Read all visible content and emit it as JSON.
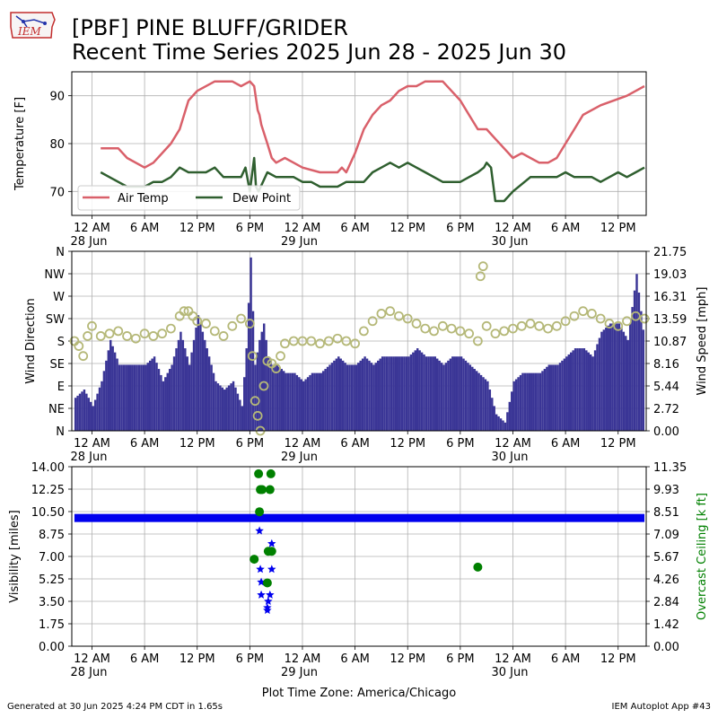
{
  "header": {
    "title_line1": "[PBF] PINE BLUFF/GRIDER",
    "title_line2": "Recent Time Series 2025 Jun 28 - 2025 Jun 30",
    "logo_text": "IEM"
  },
  "footer": {
    "left": "Generated at 30 Jun 2025 4:24 PM CDT in 1.65s",
    "right": "IEM Autoplot App #43"
  },
  "colors": {
    "air_temp": "#d9606a",
    "dew_point": "#2f5f2f",
    "wind_speed": "#3a3596",
    "wind_dir": "#b5b878",
    "visibility": "#0000ee",
    "ceiling": "#008000",
    "grid": "#b0b0b0"
  },
  "chart_data": [
    {
      "type": "line",
      "title": "",
      "xlabel": "",
      "ylabel": "Temperature [F]",
      "x_ticks": [
        "12 AM\n28 Jun",
        "6 AM",
        "12 PM",
        "6 PM",
        "12 AM\n29 Jun",
        "6 AM",
        "12 PM",
        "6 PM",
        "12 AM\n30 Jun",
        "6 AM",
        "12 PM"
      ],
      "y_ticks": [
        70,
        80,
        90
      ],
      "ylim": [
        65,
        95
      ],
      "xlim_hours": [
        -2.3,
        63.2
      ],
      "legend": "lower-left",
      "grid": true,
      "series": [
        {
          "name": "Air Temp",
          "hours": [
            1,
            3,
            4,
            6,
            7,
            9,
            10,
            11,
            12,
            14,
            16,
            17,
            18,
            18.5,
            18.9,
            19.1,
            19.3,
            20,
            20.5,
            21,
            22,
            23,
            24,
            26,
            28,
            28.5,
            29,
            30,
            31,
            32,
            33,
            34,
            35,
            36,
            37,
            38,
            40,
            41,
            42,
            43,
            44,
            45,
            46,
            47,
            48,
            49,
            50,
            51,
            52,
            53,
            54,
            55,
            56,
            58,
            61,
            62,
            63
          ],
          "values": [
            79,
            79,
            77,
            75,
            76,
            80,
            83,
            89,
            91,
            93,
            93,
            92,
            93,
            92,
            87,
            86,
            84,
            80,
            77,
            76,
            77,
            76,
            75,
            74,
            74,
            75,
            74,
            78,
            83,
            86,
            88,
            89,
            91,
            92,
            92,
            93,
            93,
            91,
            89,
            86,
            83,
            83,
            81,
            79,
            77,
            78,
            77,
            76,
            76,
            77,
            80,
            83,
            86,
            88,
            90,
            91,
            92
          ]
        },
        {
          "name": "Dew Point",
          "hours": [
            1,
            3,
            4,
            6,
            7,
            8,
            9,
            10,
            11,
            12,
            13,
            14,
            15,
            16,
            17,
            17.5,
            18,
            18.5,
            18.7,
            19,
            20,
            21,
            22,
            23,
            24,
            25,
            26,
            27,
            28,
            29,
            31,
            32,
            33,
            34,
            35,
            36,
            37,
            38,
            40,
            41,
            42,
            43,
            44,
            44.7,
            45,
            45.5,
            46,
            47,
            48,
            50,
            51,
            52,
            53,
            54,
            55,
            56,
            57,
            58,
            59,
            60,
            61,
            62,
            63
          ],
          "values": [
            74,
            72,
            71,
            71,
            72,
            72,
            73,
            75,
            74,
            74,
            74,
            75,
            73,
            73,
            73,
            75,
            70,
            77,
            71,
            70,
            74,
            73,
            73,
            73,
            72,
            72,
            71,
            71,
            71,
            72,
            72,
            74,
            75,
            76,
            75,
            76,
            75,
            74,
            72,
            72,
            72,
            73,
            74,
            75,
            76,
            75,
            68,
            68,
            70,
            73,
            73,
            73,
            73,
            74,
            73,
            73,
            73,
            72,
            73,
            74,
            73,
            74,
            75
          ]
        }
      ]
    },
    {
      "type": "bar",
      "title": "",
      "xlabel": "",
      "ylabel": "Wind Direction",
      "y2label": "Wind Speed [mph]",
      "x_ticks": [
        "12 AM\n28 Jun",
        "6 AM",
        "12 PM",
        "6 PM",
        "12 AM\n29 Jun",
        "6 AM",
        "12 PM",
        "6 PM",
        "12 AM\n30 Jun",
        "6 AM",
        "12 PM"
      ],
      "direction_ticks": [
        "N",
        "NE",
        "E",
        "SE",
        "S",
        "SW",
        "W",
        "NW",
        "N"
      ],
      "direction_lim_deg": [
        0,
        360
      ],
      "speed_ticks": [
        "0.00",
        "2.72",
        "5.44",
        "8.16",
        "10.87",
        "13.59",
        "16.31",
        "19.03",
        "21.75"
      ],
      "speed_lim": [
        0,
        21.75
      ],
      "grid": true,
      "series": [
        {
          "name": "Wind Speed [mph]",
          "style": "bars",
          "hours": [
            -2,
            -1,
            0,
            1,
            2,
            3,
            4,
            5,
            6,
            7,
            8,
            9,
            10,
            11,
            12,
            13,
            14,
            15,
            16,
            17,
            17.5,
            18,
            18.5,
            19,
            19.5,
            20,
            20.5,
            21,
            22,
            23,
            24,
            25,
            26,
            27,
            28,
            29,
            30,
            31,
            32,
            33,
            34,
            35,
            36,
            37,
            38,
            39,
            40,
            41,
            42,
            43,
            44,
            45,
            46,
            47,
            48,
            49,
            50,
            51,
            52,
            53,
            54,
            55,
            56,
            57,
            58,
            59,
            60,
            61,
            62,
            63
          ],
          "values": [
            4,
            5,
            3,
            6,
            11,
            8,
            8,
            8,
            8,
            9,
            6,
            8,
            12,
            8,
            14,
            10,
            6,
            5,
            6,
            3,
            10,
            21,
            8,
            11,
            13,
            9,
            8,
            8,
            7,
            7,
            6,
            7,
            7,
            8,
            9,
            8,
            8,
            9,
            8,
            9,
            9,
            9,
            9,
            10,
            9,
            9,
            8,
            9,
            9,
            8,
            7,
            6,
            2,
            1,
            6,
            7,
            7,
            7,
            8,
            8,
            9,
            10,
            10,
            9,
            12,
            13,
            13,
            11,
            19,
            10
          ]
        },
        {
          "name": "Wind Direction",
          "style": "open-circles",
          "hours": [
            -2,
            -1.5,
            -1,
            -0.5,
            0,
            1,
            2,
            3,
            4,
            5,
            6,
            7,
            8,
            9,
            10,
            10.5,
            11,
            11.5,
            12,
            13,
            14,
            15,
            16,
            17,
            18,
            18.3,
            18.6,
            18.9,
            19.2,
            19.6,
            20,
            20.5,
            21,
            21.5,
            22,
            23,
            24,
            25,
            26,
            27,
            28,
            29,
            30,
            31,
            32,
            33,
            34,
            35,
            36,
            37,
            38,
            39,
            40,
            41,
            42,
            43,
            44,
            44.3,
            44.6,
            45,
            46,
            47,
            48,
            49,
            50,
            51,
            52,
            53,
            54,
            55,
            56,
            57,
            58,
            59,
            60,
            61,
            62,
            63
          ],
          "values": [
            180,
            170,
            150,
            190,
            210,
            190,
            195,
            200,
            190,
            185,
            195,
            190,
            195,
            205,
            230,
            240,
            240,
            230,
            220,
            215,
            200,
            190,
            210,
            225,
            215,
            150,
            60,
            30,
            0,
            90,
            140,
            135,
            125,
            150,
            175,
            180,
            180,
            180,
            175,
            180,
            185,
            180,
            175,
            200,
            220,
            235,
            240,
            230,
            225,
            215,
            205,
            200,
            210,
            205,
            200,
            195,
            180,
            310,
            330,
            210,
            195,
            200,
            205,
            210,
            215,
            210,
            205,
            210,
            220,
            230,
            240,
            235,
            225,
            215,
            210,
            220,
            230,
            225
          ]
        }
      ]
    },
    {
      "type": "scatter",
      "title": "",
      "xlabel": "Plot Time Zone: America/Chicago",
      "ylabel": "Visibility [miles]",
      "y2label": "Overcast Ceiling [k ft]",
      "x_ticks": [
        "12 AM\n28 Jun",
        "6 AM",
        "12 PM",
        "6 PM",
        "12 AM\n29 Jun",
        "6 AM",
        "12 PM",
        "6 PM",
        "12 AM\n30 Jun",
        "6 AM",
        "12 PM"
      ],
      "visibility_ticks": [
        "0.00",
        "1.75",
        "3.50",
        "5.25",
        "7.00",
        "8.75",
        "10.50",
        "12.25",
        "14.00"
      ],
      "visibility_lim": [
        0,
        14
      ],
      "ceiling_ticks": [
        "0.00",
        "1.42",
        "2.84",
        "4.26",
        "5.67",
        "7.09",
        "8.51",
        "9.93",
        "11.35"
      ],
      "ceiling_lim": [
        0,
        11.35
      ],
      "grid": true,
      "visibility_baseline": {
        "from_hour": -2,
        "to_hour": 63,
        "value": 10
      },
      "series": [
        {
          "name": "Visibility [miles]",
          "marker": "star",
          "hours": [
            19.1,
            19.2,
            19.3,
            19.3,
            20.0,
            20.0,
            20.1,
            20.3,
            20.5,
            20.5
          ],
          "values": [
            9.0,
            6.0,
            5.0,
            4.0,
            3.0,
            2.8,
            3.5,
            4.0,
            6.0,
            8.0
          ]
        },
        {
          "name": "Overcast Ceiling [k ft]",
          "marker": "circle",
          "hours": [
            18.5,
            19.0,
            19.2,
            19.4,
            19.1,
            20.0,
            20.1,
            20.3,
            20.4,
            20.5,
            44.0
          ],
          "values": [
            5.5,
            10.9,
            9.9,
            9.9,
            8.5,
            4.0,
            6.0,
            9.9,
            10.9,
            6.0,
            5.0
          ]
        }
      ]
    }
  ]
}
